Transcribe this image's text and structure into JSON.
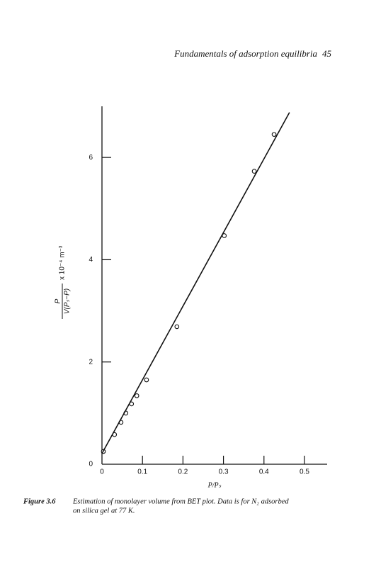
{
  "header": {
    "title": "Fundamentals of adsorption equilibria",
    "page": "45"
  },
  "chart_data": {
    "type": "scatter",
    "x_label": "P/Pₛ",
    "y_label": {
      "numerator": "P",
      "denominator": "V(Pₛ−P)",
      "factor": "x 10⁻⁴ m⁻³"
    },
    "xlim": [
      0,
      0.556
    ],
    "ylim": [
      0,
      7
    ],
    "xticks": [
      0,
      0.1,
      0.2,
      0.3,
      0.4,
      0.5
    ],
    "yticks": [
      0,
      2,
      4,
      6
    ],
    "series": [
      {
        "color": "#111111",
        "marker": "circle",
        "x": [
          0.0035,
          0.031,
          0.047,
          0.059,
          0.073,
          0.086,
          0.11,
          0.185,
          0.302,
          0.376,
          0.425
        ],
        "values": [
          0.25,
          0.58,
          0.82,
          1.0,
          1.18,
          1.34,
          1.65,
          2.69,
          4.47,
          5.73,
          6.45
        ]
      },
      {
        "color": "#111111",
        "marker": "line",
        "x": [
          0,
          0.463
        ],
        "values": [
          0.21,
          6.88
        ]
      }
    ]
  },
  "caption": {
    "label": "Figure 3.6",
    "lines": [
      "Estimation of monolayer volume from BET plot. Data is for N₂ adsorbed",
      "on silica gel at 77 K."
    ]
  }
}
